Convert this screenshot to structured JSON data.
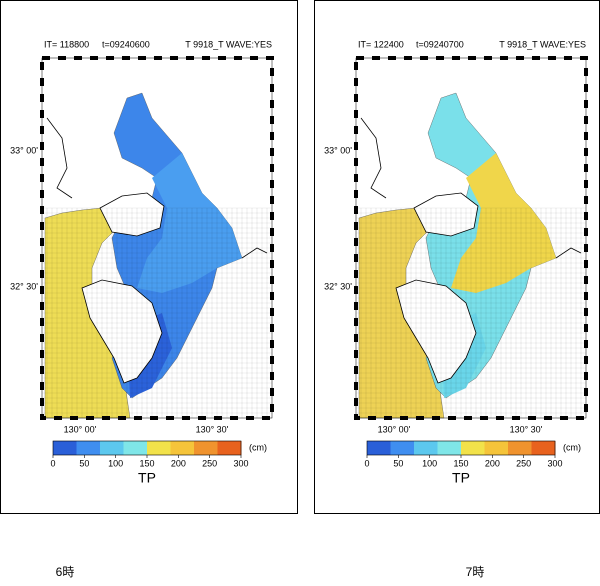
{
  "panels": [
    {
      "header": {
        "it": "IT=  118800",
        "time": "t=09240600",
        "run": "T 9918_T  WAVE:YES"
      },
      "lat_labels": [
        "33° 00'",
        "32° 30'"
      ],
      "lon_labels": [
        "130° 00'",
        "130° 30'"
      ],
      "colorbar": {
        "ticks": [
          0,
          50,
          100,
          150,
          200,
          250,
          300
        ],
        "unit": "(cm)",
        "label": "TP"
      },
      "caption": "6時"
    },
    {
      "header": {
        "it": "IT=  122400",
        "time": "t=09240700",
        "run": "T 9918_T  WAVE:YES"
      },
      "lat_labels": [
        "33° 00'",
        "32° 30'"
      ],
      "lon_labels": [
        "130° 00'",
        "130° 30'"
      ],
      "colorbar": {
        "ticks": [
          0,
          50,
          100,
          150,
          200,
          250,
          300
        ],
        "unit": "(cm)",
        "label": "TP"
      },
      "caption": "7時"
    }
  ]
}
